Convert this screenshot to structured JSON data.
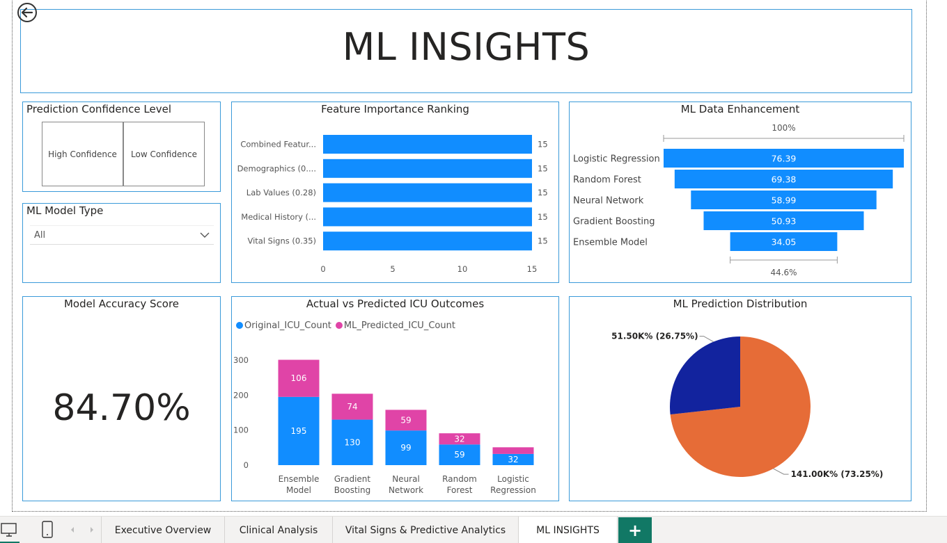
{
  "header": {
    "title": "ML INSIGHTS"
  },
  "confidence": {
    "title": "Prediction Confidence Level",
    "options": [
      "High Confidence",
      "Low Confidence"
    ]
  },
  "model_type": {
    "title": "ML Model Type",
    "selected": "All"
  },
  "accuracy": {
    "title": "Model Accuracy Score",
    "value": "84.70%"
  },
  "feature_importance": {
    "title": "Feature Importance Ranking"
  },
  "enhancement": {
    "title": "ML Data Enhancement",
    "top_pct": "100%",
    "bottom_pct": "44.6%"
  },
  "outcomes": {
    "title": "Actual vs Predicted ICU Outcomes"
  },
  "distribution": {
    "title": "ML Prediction Distribution"
  },
  "tabs": {
    "items": [
      "Executive Overview",
      "Clinical Analysis",
      "Vital Signs & Predictive Analytics",
      "ML INSIGHTS"
    ],
    "add_label": "+"
  },
  "colors": {
    "blue": "#118dff",
    "pink": "#e044a7",
    "orange": "#e66c37",
    "navy": "#12239e",
    "accent": "#117865"
  },
  "chart_data": [
    {
      "type": "bar",
      "orientation": "horizontal",
      "title": "Feature Importance Ranking",
      "categories": [
        "Combined Featur...",
        "Demographics (0....",
        "Lab Values (0.28)",
        "Medical History (...",
        "Vital Signs (0.35)"
      ],
      "values": [
        15,
        15,
        15,
        15,
        15
      ],
      "xlim": [
        0,
        15
      ],
      "xticks": [
        0,
        5,
        10,
        15
      ]
    },
    {
      "type": "funnel",
      "title": "ML Data Enhancement",
      "categories": [
        "Logistic Regression",
        "Random Forest",
        "Neural Network",
        "Gradient Boosting",
        "Ensemble Model"
      ],
      "values": [
        76.39,
        69.38,
        58.99,
        50.93,
        34.05
      ]
    },
    {
      "type": "bar",
      "stacked": true,
      "title": "Actual vs Predicted ICU Outcomes",
      "categories": [
        [
          "Ensemble",
          "Model"
        ],
        [
          "Gradient",
          "Boosting"
        ],
        [
          "Neural",
          "Network"
        ],
        [
          "Random",
          "Forest"
        ],
        [
          "Logistic",
          "Regression"
        ]
      ],
      "series": [
        {
          "name": "Original_ICU_Count",
          "values": [
            195,
            130,
            99,
            59,
            32
          ]
        },
        {
          "name": "ML_Predicted_ICU_Count",
          "values": [
            106,
            74,
            59,
            32,
            19
          ]
        }
      ],
      "segment_labels": [
        [
          "195",
          "130",
          "99",
          "59",
          "32"
        ],
        [
          "106",
          "74",
          "59",
          "32",
          ""
        ]
      ],
      "ylim": [
        0,
        300
      ],
      "yticks": [
        0,
        100,
        200,
        300
      ],
      "legend": "top-left"
    },
    {
      "type": "pie",
      "title": "ML Prediction Distribution",
      "slices": [
        {
          "value": 141.0,
          "pct": 73.25,
          "label": "141.00K% (73.25%)"
        },
        {
          "value": 51.5,
          "pct": 26.75,
          "label": "51.50K% (26.75%)"
        }
      ]
    }
  ]
}
